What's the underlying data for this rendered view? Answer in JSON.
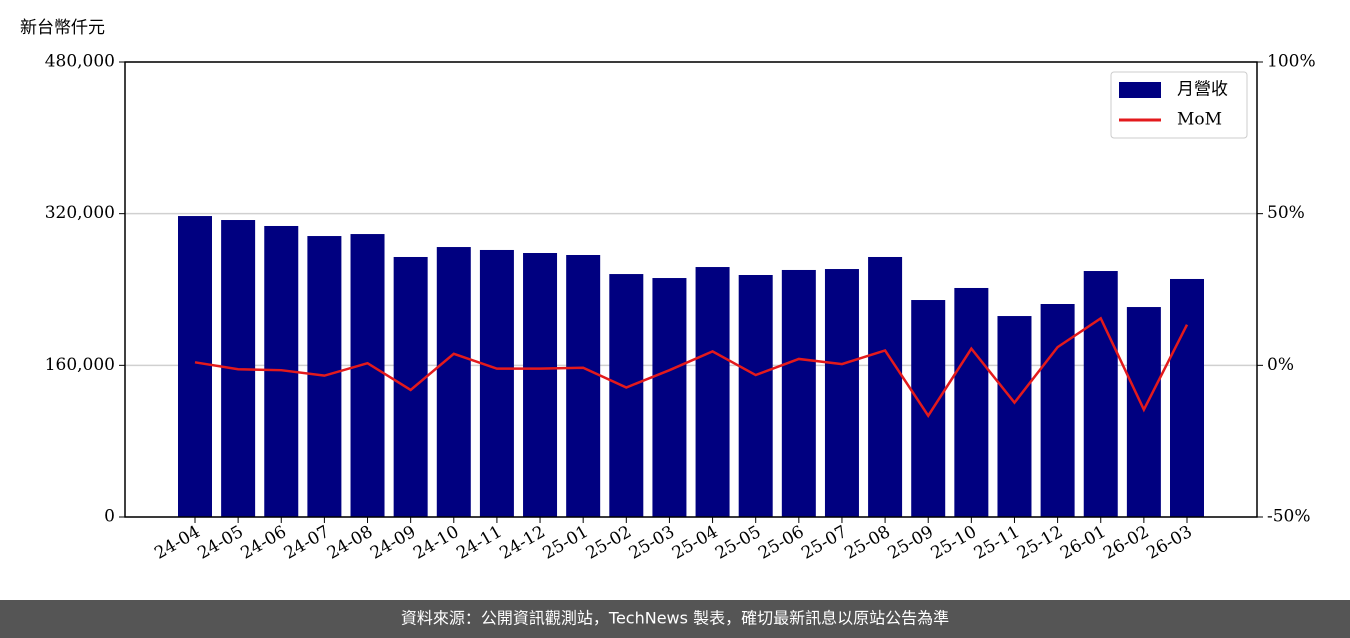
{
  "chart_data": {
    "type": "bar_line",
    "ylabel": "新台幣仟元",
    "categories": [
      "24-04",
      "24-05",
      "24-06",
      "24-07",
      "24-08",
      "24-09",
      "24-10",
      "24-11",
      "24-12",
      "25-01",
      "25-02",
      "25-03",
      "25-04",
      "25-05",
      "25-06",
      "25-07",
      "25-08",
      "25-09",
      "25-10",
      "25-11",
      "25-12",
      "26-01",
      "26-02",
      "26-03"
    ],
    "series": [
      {
        "name": "月營收",
        "color": "#000080",
        "type": "bar",
        "values": [
          317500,
          313300,
          307000,
          296400,
          298500,
          274300,
          284800,
          281700,
          278500,
          276400,
          256300,
          252100,
          263700,
          255300,
          260600,
          261600,
          274300,
          228900,
          241600,
          212000,
          224700,
          259500,
          221500,
          251100
        ]
      },
      {
        "name": "MoM",
        "color": "#e31a1c",
        "type": "line",
        "axis": "y2",
        "values": [
          1.0,
          -1.3,
          -1.6,
          -3.4,
          0.7,
          -8.1,
          3.8,
          -1.1,
          -1.1,
          -0.8,
          -7.3,
          -1.6,
          4.6,
          -3.2,
          2.1,
          0.4,
          4.9,
          -16.6,
          5.5,
          -12.3,
          6.0,
          15.5,
          -14.6,
          13.4
        ]
      }
    ],
    "ylim": [
      0,
      480000
    ],
    "yticks": [
      {
        "value": 0,
        "label": "0"
      },
      {
        "value": 160000,
        "label": "160,000"
      },
      {
        "value": 320000,
        "label": "320,000"
      },
      {
        "value": 480000,
        "label": "480,000"
      }
    ],
    "y2lim": [
      -50,
      100
    ],
    "y2ticks": [
      {
        "value": -50,
        "label": "-50%"
      },
      {
        "value": 0,
        "label": "0%"
      },
      {
        "value": 50,
        "label": "50%"
      },
      {
        "value": 100,
        "label": "100%"
      }
    ],
    "grid": true,
    "legend": "upper right",
    "footer": "資料來源：公開資訊觀測站，TechNews 製表，確切最新訊息以原站公告為準"
  }
}
